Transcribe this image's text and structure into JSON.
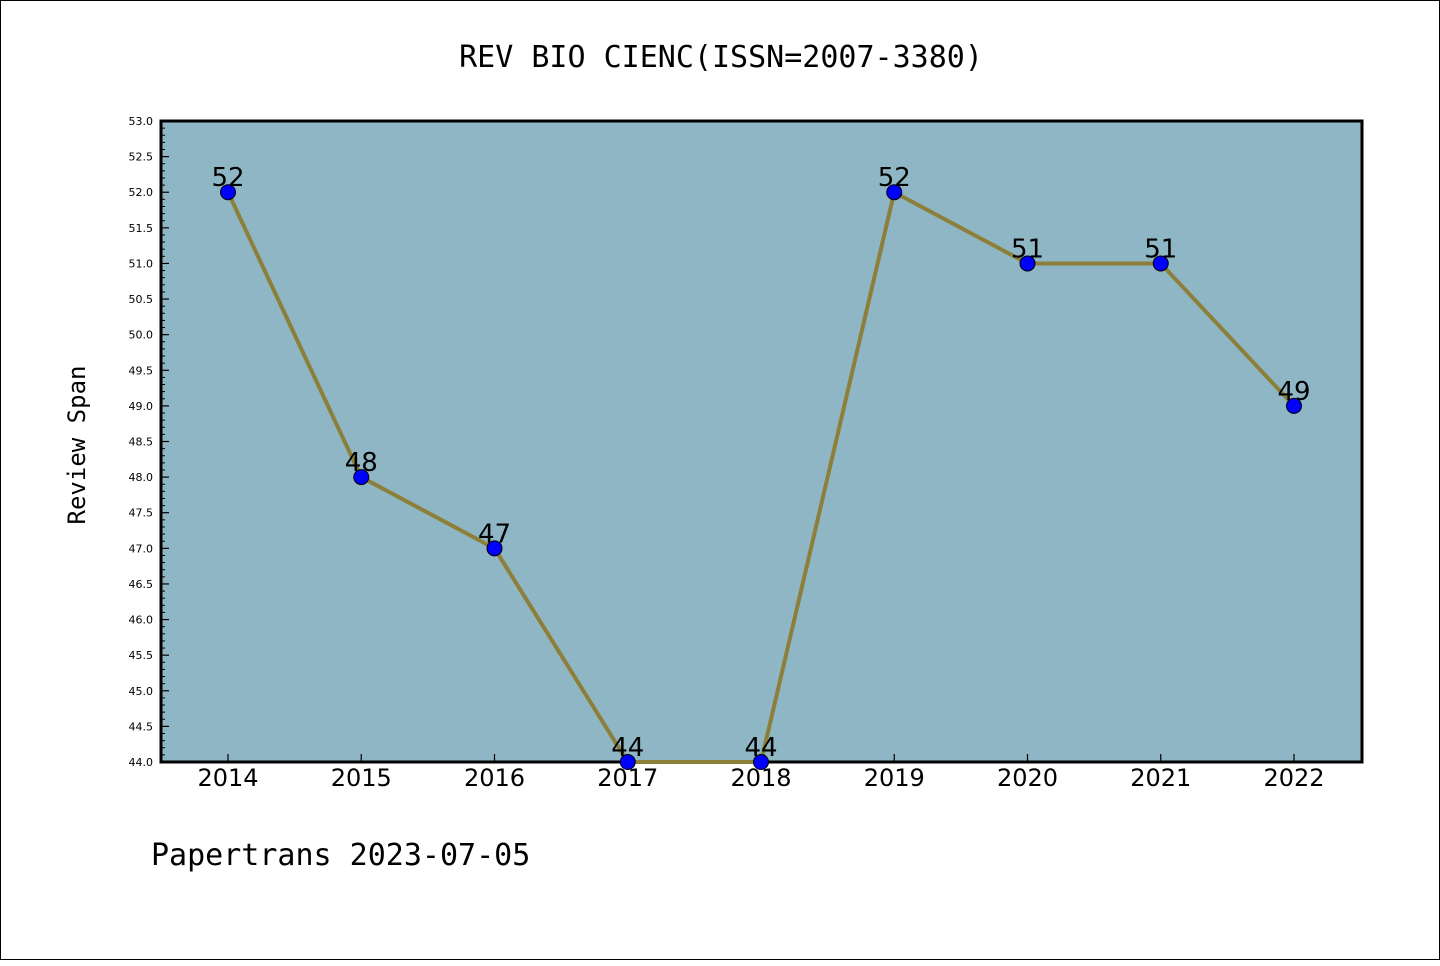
{
  "footer": "Papertrans 2023-07-05",
  "colors": {
    "plot_bg": "#8fb6c4",
    "line": "#8c7f3a",
    "marker": "#0000ff"
  },
  "chart_data": {
    "type": "line",
    "title": "REV BIO CIENC(ISSN=2007-3380)",
    "xlabel": "",
    "ylabel": "Review Span",
    "categories": [
      "2014",
      "2015",
      "2016",
      "2017",
      "2018",
      "2019",
      "2020",
      "2021",
      "2022"
    ],
    "series": [
      {
        "values": [
          52,
          48,
          47,
          44,
          44,
          52,
          51,
          51,
          49
        ]
      }
    ],
    "data_labels": [
      "52",
      "48",
      "47",
      "44",
      "44",
      "52",
      "51",
      "51",
      "49"
    ],
    "ylim": [
      44.0,
      53.0
    ],
    "yticks": [
      "44.0",
      "44.5",
      "45.0",
      "45.5",
      "46.0",
      "46.5",
      "47.0",
      "47.5",
      "48.0",
      "48.5",
      "49.0",
      "49.5",
      "50.0",
      "50.5",
      "51.0",
      "51.5",
      "52.0",
      "52.5",
      "53.0"
    ],
    "grid": false,
    "legend": "none"
  }
}
